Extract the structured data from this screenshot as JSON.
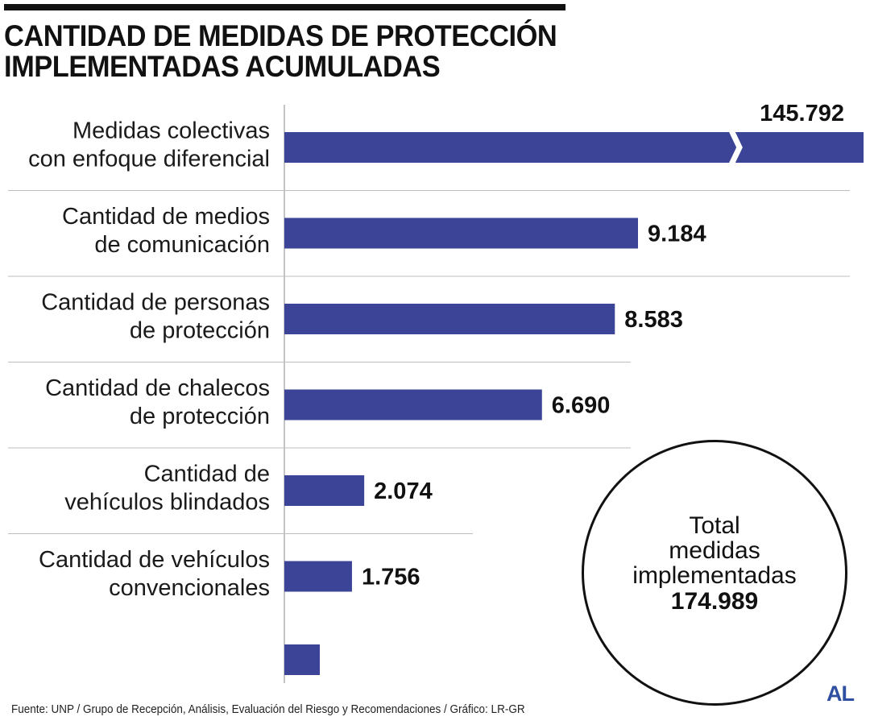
{
  "header": {
    "title_line1": "CANTIDAD DE MEDIDAS DE PROTECCIÓN",
    "title_line2": "IMPLEMENTADAS ACUMULADAS"
  },
  "chart_data": {
    "type": "bar",
    "orientation": "horizontal",
    "title": "CANTIDAD DE MEDIDAS DE PROTECCIÓN IMPLEMENTADAS ACUMULADAS",
    "categories": [
      [
        "Medidas colectivas",
        "con enfoque diferencial"
      ],
      [
        "Cantidad de medios",
        "de comunicación"
      ],
      [
        "Cantidad de personas",
        "de protección"
      ],
      [
        "Cantidad de chalecos",
        "de protección"
      ],
      [
        "Cantidad de",
        "vehículos blindados"
      ],
      [
        "Cantidad de vehículos",
        "convencionales"
      ],
      []
    ],
    "values": [
      145792,
      9184,
      8583,
      6690,
      2074,
      1756,
      null
    ],
    "value_labels": [
      "145.792",
      "9.184",
      "8.583",
      "6.690",
      "2.074",
      "1.756",
      ""
    ],
    "axis_break_on_first_bar": true,
    "bar_color": "#3b4496",
    "gridlines": "horizontal separators",
    "legend": "none"
  },
  "total": {
    "label_lines": [
      "Total",
      "medidas",
      "implementadas"
    ],
    "value": "174.989"
  },
  "footer": {
    "source": "Fuente: UNP / Grupo de Recepción, Análisis, Evaluación del Riesgo y Recomendaciones / Gráfico: LR-GR",
    "logo": "AL"
  },
  "colors": {
    "bar": "#3b4496",
    "logo": "#2f4fa0",
    "separator": "#bdbdbd",
    "axis": "#8a8a8a"
  }
}
